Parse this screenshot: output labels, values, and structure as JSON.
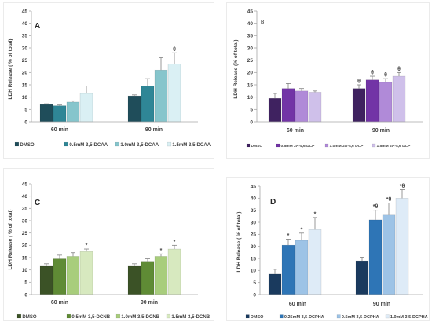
{
  "chart_data": [
    {
      "panel": "A",
      "type": "bar",
      "ylabel": "LDH Release ( % of total)",
      "ylim": [
        0,
        45
      ],
      "yticks": [
        0,
        5,
        10,
        15,
        20,
        25,
        30,
        35,
        40,
        45
      ],
      "categories": [
        "60 min",
        "90 min"
      ],
      "legend_position": "bottom",
      "grid": false,
      "series": [
        {
          "name": "DMSO",
          "color": "#1f4d5a",
          "values": [
            7.0,
            10.5
          ],
          "errors": [
            0.3,
            0.4
          ],
          "annotations": [
            "",
            ""
          ]
        },
        {
          "name": "0.5mM 3,5-DCAA",
          "color": "#2f8696",
          "values": [
            6.5,
            14.5
          ],
          "errors": [
            0.3,
            3.0
          ],
          "annotations": [
            "",
            ""
          ]
        },
        {
          "name": "1.0mM 3,5-DCAA",
          "color": "#86c5cc",
          "values": [
            8.0,
            21.0
          ],
          "errors": [
            0.5,
            5.0
          ],
          "annotations": [
            "",
            ""
          ]
        },
        {
          "name": "1.5mM 3,5-DCAA",
          "color": "#daf0f4",
          "values": [
            11.5,
            23.5
          ],
          "errors": [
            3.0,
            4.5
          ],
          "annotations": [
            "",
            "θ"
          ]
        }
      ]
    },
    {
      "panel": "B",
      "type": "bar",
      "ylabel": "LDH Release (% of total)",
      "ylim": [
        0,
        45
      ],
      "yticks": [
        0,
        5,
        10,
        15,
        20,
        25,
        30,
        35,
        40,
        45
      ],
      "categories": [
        "60 min",
        "90 min"
      ],
      "legend_position": "bottom",
      "grid": false,
      "series": [
        {
          "name": "DMSO",
          "color": "#3f2260",
          "values": [
            9.5,
            13.5
          ],
          "errors": [
            2.0,
            1.5
          ],
          "annotations": [
            "",
            "θ"
          ]
        },
        {
          "name": "0.5mM 2A-4,6 DCP",
          "color": "#7234a6",
          "values": [
            13.5,
            17.0
          ],
          "errors": [
            2.0,
            1.5
          ],
          "annotations": [
            "",
            "θ"
          ]
        },
        {
          "name": "1.0mM 2A-4,6 DCP",
          "color": "#b08ad8",
          "values": [
            12.5,
            16.0
          ],
          "errors": [
            1.0,
            1.5
          ],
          "annotations": [
            "",
            "θ"
          ]
        },
        {
          "name": "1.5mM 2A-4,6 DCP",
          "color": "#cfc0ea",
          "values": [
            12.0,
            18.5
          ],
          "errors": [
            0.5,
            1.5
          ],
          "annotations": [
            "",
            "θ"
          ]
        }
      ]
    },
    {
      "panel": "C",
      "type": "bar",
      "ylabel": "LDH Release ( % of total)",
      "ylim": [
        0,
        45
      ],
      "yticks": [
        0,
        5,
        10,
        15,
        20,
        25,
        30,
        35,
        40,
        45
      ],
      "categories": [
        "60 min",
        "90 min"
      ],
      "legend_position": "bottom",
      "grid": false,
      "series": [
        {
          "name": "DMSO",
          "color": "#3b5226",
          "values": [
            11.5,
            11.5
          ],
          "errors": [
            1.0,
            1.0
          ],
          "annotations": [
            "",
            ""
          ]
        },
        {
          "name": "0.5mM 3,5-DCNB",
          "color": "#5f8b35",
          "values": [
            14.5,
            13.5
          ],
          "errors": [
            1.5,
            1.0
          ],
          "annotations": [
            "",
            ""
          ]
        },
        {
          "name": "1.0mM 3,5-DCNB",
          "color": "#a8cd7c",
          "values": [
            15.5,
            15.5
          ],
          "errors": [
            1.5,
            1.0
          ],
          "annotations": [
            "",
            "*"
          ]
        },
        {
          "name": "1.5mM 3,5-DCNB",
          "color": "#d7e9bf",
          "values": [
            17.5,
            18.5
          ],
          "errors": [
            1.0,
            1.5
          ],
          "annotations": [
            "*",
            "*"
          ]
        }
      ]
    },
    {
      "panel": "D",
      "type": "bar",
      "ylabel": "LDH Release ( % of total)",
      "ylim": [
        0,
        45
      ],
      "yticks": [
        0,
        5,
        10,
        15,
        20,
        25,
        30,
        35,
        40,
        45
      ],
      "categories": [
        "60 min",
        "90 min"
      ],
      "legend_position": "bottom",
      "grid": false,
      "series": [
        {
          "name": "DMSO",
          "color": "#1a3a5e",
          "values": [
            8.5,
            14.0
          ],
          "errors": [
            2.0,
            1.5
          ],
          "annotations": [
            "",
            ""
          ]
        },
        {
          "name": "0.25mM 3,5-DCPHA",
          "color": "#2e75b6",
          "values": [
            20.5,
            31.0
          ],
          "errors": [
            2.5,
            4.0
          ],
          "annotations": [
            "*",
            "*θ"
          ]
        },
        {
          "name": "0.5mM 3,5-DCPHA",
          "color": "#9dc3e6",
          "values": [
            22.5,
            33.0
          ],
          "errors": [
            3.0,
            5.0
          ],
          "annotations": [
            "*",
            "*θ"
          ]
        },
        {
          "name": "1.0mM 3,5-DCPHA",
          "color": "#deebf7",
          "values": [
            27.0,
            40.0
          ],
          "errors": [
            5.0,
            3.5
          ],
          "annotations": [
            "*",
            "*θ"
          ]
        }
      ]
    }
  ]
}
